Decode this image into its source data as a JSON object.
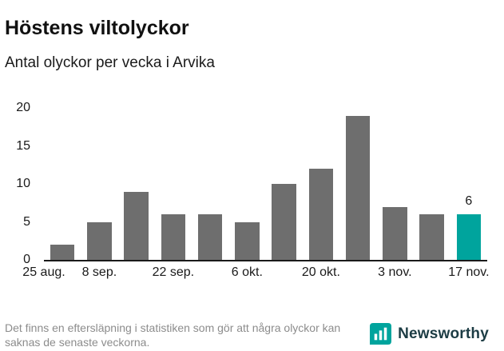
{
  "header": {
    "title": "Höstens viltolyckor",
    "subtitle": "Antal olyckor per vecka i Arvika"
  },
  "chart_data": {
    "type": "bar",
    "title": "Höstens viltolyckor",
    "subtitle": "Antal olyckor per vecka i Arvika",
    "values": [
      2,
      5,
      9,
      6,
      6,
      5,
      10,
      12,
      19,
      7,
      6,
      6
    ],
    "highlight_index": 11,
    "highlight_value_label": "6",
    "xtick_labels": [
      "25 aug.",
      "8 sep.",
      "22 sep.",
      "6 okt.",
      "20 okt.",
      "3 nov.",
      "17 nov."
    ],
    "yticks": [
      0,
      5,
      10,
      15,
      20
    ],
    "ylim": [
      0,
      20
    ],
    "bar_color": "#6e6e6e",
    "highlight_color": "#00a49d",
    "xlabel": "",
    "ylabel": "",
    "grid": "off",
    "legend": "none"
  },
  "footer": {
    "note": "Det finns en eftersläpning i statistiken som gör att några olyckor kan saknas de senaste veckorna.",
    "brand": "Newsworthy",
    "brand_color": "#00a49d"
  }
}
